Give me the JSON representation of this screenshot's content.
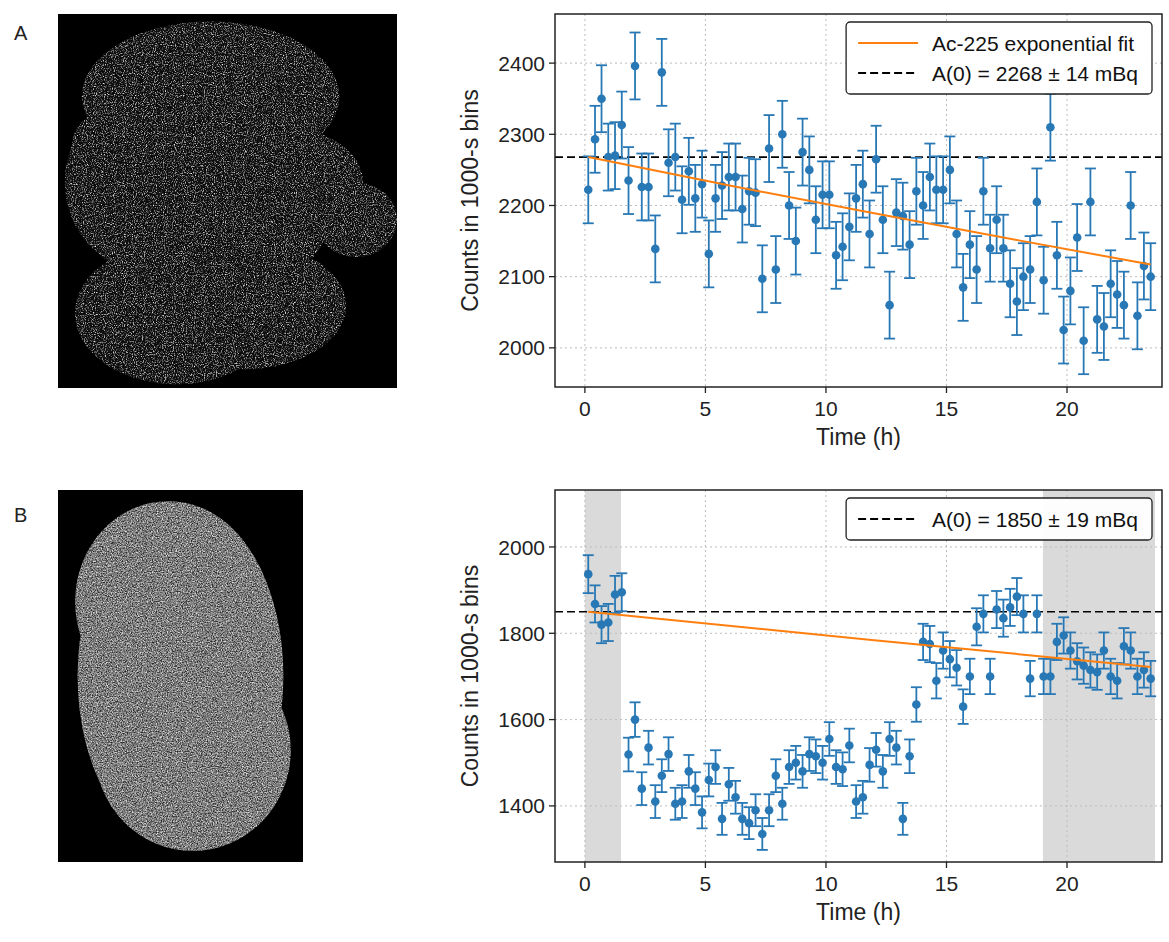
{
  "chart_data": [
    {
      "type": "scatter",
      "panel_label": "A",
      "x_label": "Time (h)",
      "y_label": "Counts in 1000-s bins",
      "xlim": [
        -1.24,
        23.94
      ],
      "xticks": [
        0,
        5,
        10,
        15,
        20
      ],
      "ylim": [
        1945,
        2469
      ],
      "yticks": [
        2000,
        2100,
        2200,
        2300,
        2400
      ],
      "grid": true,
      "legend": "upper right",
      "series": [
        {
          "type": "scatter",
          "color": "#2878b5",
          "marker": "circle",
          "x": [
            0.14,
            0.42,
            0.69,
            0.97,
            1.25,
            1.53,
            1.81,
            2.08,
            2.36,
            2.64,
            2.92,
            3.19,
            3.47,
            3.75,
            4.03,
            4.31,
            4.58,
            4.86,
            5.14,
            5.42,
            5.69,
            5.97,
            6.25,
            6.53,
            6.81,
            7.08,
            7.36,
            7.64,
            7.92,
            8.19,
            8.47,
            8.75,
            9.03,
            9.31,
            9.58,
            9.86,
            10.14,
            10.42,
            10.69,
            10.97,
            11.25,
            11.53,
            11.81,
            12.08,
            12.36,
            12.64,
            12.92,
            13.19,
            13.47,
            13.75,
            14.03,
            14.31,
            14.58,
            14.86,
            15.14,
            15.42,
            15.69,
            15.97,
            16.25,
            16.53,
            16.81,
            17.08,
            17.36,
            17.64,
            17.92,
            18.19,
            18.47,
            18.75,
            19.03,
            19.31,
            19.58,
            19.86,
            20.14,
            20.42,
            20.69,
            20.97,
            21.25,
            21.53,
            21.81,
            22.08,
            22.36,
            22.64,
            22.92,
            23.19,
            23.47
          ],
          "values": [
            2222,
            2293,
            2350,
            2268,
            2270,
            2313,
            2235,
            2396,
            2226,
            2226,
            2139,
            2387,
            2260,
            2268,
            2208,
            2248,
            2210,
            2230,
            2132,
            2210,
            2228,
            2240,
            2240,
            2195,
            2220,
            2218,
            2097,
            2280,
            2110,
            2300,
            2200,
            2150,
            2275,
            2250,
            2180,
            2215,
            2215,
            2130,
            2142,
            2170,
            2210,
            2230,
            2160,
            2265,
            2180,
            2060,
            2190,
            2185,
            2145,
            2220,
            2200,
            2240,
            2222,
            2222,
            2250,
            2160,
            2085,
            2145,
            2110,
            2220,
            2140,
            2180,
            2140,
            2090,
            2065,
            2100,
            2110,
            2205,
            2095,
            2310,
            2130,
            2025,
            2080,
            2155,
            2010,
            2205,
            2040,
            2030,
            2090,
            2075,
            2060,
            2200,
            2045,
            2115,
            2100
          ],
          "errors": [
            47,
            47,
            47,
            47,
            47,
            47,
            47,
            47,
            47,
            47,
            47,
            47,
            47,
            47,
            47,
            47,
            47,
            47,
            47,
            47,
            47,
            47,
            47,
            47,
            47,
            47,
            47,
            47,
            47,
            47,
            47,
            47,
            47,
            47,
            47,
            47,
            47,
            47,
            47,
            47,
            47,
            47,
            47,
            47,
            47,
            47,
            47,
            47,
            47,
            47,
            47,
            47,
            47,
            47,
            47,
            47,
            47,
            47,
            47,
            47,
            47,
            47,
            47,
            47,
            47,
            47,
            47,
            47,
            47,
            47,
            47,
            47,
            47,
            47,
            47,
            47,
            47,
            47,
            47,
            47,
            47,
            47,
            47,
            47,
            47
          ]
        },
        {
          "name": "Ac-225 exponential fit",
          "type": "line",
          "color": "#ff7f0e",
          "line_style": "solid",
          "x": [
            0.14,
            6,
            12,
            18,
            23.47
          ],
          "values": [
            2268,
            2228,
            2189,
            2151,
            2117
          ]
        },
        {
          "name": "A(0) = 2268 ± 14 mBq",
          "type": "hline",
          "color": "#000000",
          "line_style": "dashed",
          "values": [
            2268
          ]
        }
      ]
    },
    {
      "type": "scatter",
      "panel_label": "B",
      "x_label": "Time (h)",
      "y_label": "Counts in 1000-s bins",
      "xlim": [
        -1.24,
        23.94
      ],
      "xticks": [
        0,
        5,
        10,
        15,
        20
      ],
      "ylim": [
        1270,
        2132
      ],
      "yticks": [
        1400,
        1600,
        1800,
        2000
      ],
      "grid": true,
      "legend": "upper right",
      "shaded_regions": [
        [
          0,
          1.5
        ],
        [
          19,
          23.65
        ]
      ],
      "series": [
        {
          "type": "scatter",
          "color": "#2878b5",
          "marker": "circle",
          "x": [
            0.14,
            0.42,
            0.69,
            0.97,
            1.25,
            1.53,
            1.81,
            2.08,
            2.36,
            2.64,
            2.92,
            3.19,
            3.47,
            3.75,
            4.03,
            4.31,
            4.58,
            4.86,
            5.14,
            5.42,
            5.69,
            5.97,
            6.25,
            6.53,
            6.81,
            7.08,
            7.36,
            7.64,
            7.92,
            8.19,
            8.47,
            8.75,
            9.03,
            9.31,
            9.58,
            9.86,
            10.14,
            10.42,
            10.69,
            10.97,
            11.25,
            11.53,
            11.81,
            12.08,
            12.36,
            12.64,
            12.92,
            13.19,
            13.47,
            13.75,
            14.03,
            14.31,
            14.58,
            14.86,
            15.14,
            15.42,
            15.69,
            15.97,
            16.25,
            16.53,
            16.81,
            17.08,
            17.36,
            17.64,
            17.92,
            18.19,
            18.47,
            18.75,
            19.03,
            19.31,
            19.58,
            19.86,
            20.14,
            20.42,
            20.69,
            20.97,
            21.25,
            21.53,
            21.81,
            22.08,
            22.36,
            22.64,
            22.92,
            23.19,
            23.47
          ],
          "values": [
            1937,
            1868,
            1820,
            1825,
            1890,
            1895,
            1519,
            1600,
            1440,
            1535,
            1410,
            1470,
            1520,
            1405,
            1410,
            1480,
            1440,
            1385,
            1460,
            1490,
            1370,
            1450,
            1420,
            1370,
            1360,
            1390,
            1335,
            1390,
            1470,
            1405,
            1490,
            1500,
            1480,
            1520,
            1515,
            1500,
            1555,
            1490,
            1485,
            1540,
            1410,
            1420,
            1495,
            1530,
            1480,
            1555,
            1535,
            1370,
            1515,
            1635,
            1780,
            1775,
            1690,
            1760,
            1740,
            1720,
            1630,
            1700,
            1815,
            1845,
            1700,
            1855,
            1835,
            1860,
            1885,
            1845,
            1695,
            1845,
            1700,
            1700,
            1780,
            1795,
            1760,
            1735,
            1725,
            1715,
            1710,
            1760,
            1700,
            1690,
            1770,
            1760,
            1700,
            1715,
            1695
          ],
          "errors": [
            44,
            43,
            43,
            43,
            43,
            44,
            39,
            40,
            38,
            39,
            38,
            38,
            39,
            37,
            38,
            38,
            38,
            37,
            38,
            39,
            37,
            38,
            38,
            37,
            37,
            37,
            37,
            37,
            38,
            37,
            39,
            39,
            38,
            39,
            39,
            39,
            39,
            39,
            39,
            39,
            38,
            38,
            39,
            39,
            38,
            39,
            39,
            37,
            39,
            40,
            42,
            42,
            41,
            42,
            42,
            41,
            40,
            41,
            43,
            43,
            41,
            43,
            43,
            43,
            43,
            43,
            41,
            43,
            41,
            41,
            42,
            42,
            42,
            42,
            42,
            41,
            41,
            42,
            41,
            41,
            42,
            42,
            41,
            41,
            41
          ]
        },
        {
          "type": "line",
          "color": "#ff7f0e",
          "line_style": "solid",
          "x": [
            0.14,
            12,
            23.47
          ],
          "values": [
            1850,
            1784,
            1722
          ]
        },
        {
          "name": "A(0) = 1850 ± 19 mBq",
          "type": "hline",
          "color": "#000000",
          "line_style": "dashed",
          "values": [
            1850
          ]
        }
      ]
    }
  ]
}
